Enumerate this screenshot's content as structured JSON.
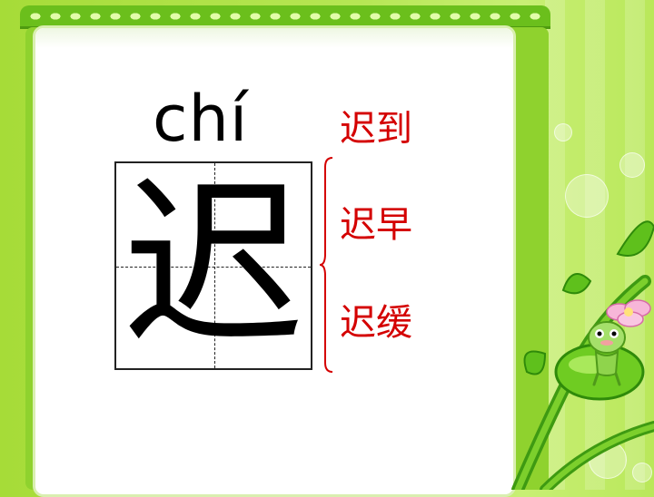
{
  "slide": {
    "pinyin": "chí",
    "character": "迟",
    "words": [
      "迟到",
      "迟早",
      "迟缓"
    ]
  },
  "colors": {
    "background": "#b6e654",
    "frame": "#6bbf1c",
    "panel": "#ffffff",
    "word_text": "#d40000",
    "brace": "#d40000",
    "character_text": "#000000"
  },
  "decorations": {
    "icons": [
      "leaf-border-icon",
      "vine-icon",
      "flower-icon",
      "frog-mascot-icon",
      "bubble-icon"
    ]
  }
}
